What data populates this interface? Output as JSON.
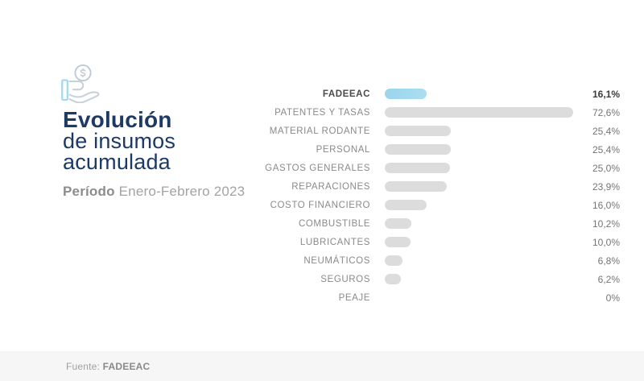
{
  "header": {
    "title_line1": "Evolución",
    "title_line2": "de insumos",
    "title_line3": "acumulada",
    "period_label": "Período",
    "period_value": "Enero-Febrero 2023"
  },
  "icons": {
    "header_icon": "hand-holding-coin-icon"
  },
  "chart_data": {
    "type": "bar",
    "orientation": "horizontal",
    "title": "Evolución de insumos acumulada",
    "period": "Enero-Febrero 2023",
    "categories": [
      "FADEEAC",
      "PATENTES Y TASAS",
      "MATERIAL RODANTE",
      "PERSONAL",
      "GASTOS GENERALES",
      "REPARACIONES",
      "COSTO FINANCIERO",
      "COMBUSTIBLE",
      "LUBRICANTES",
      "NEUMÁTICOS",
      "SEGUROS",
      "PEAJE"
    ],
    "values": [
      16.1,
      72.6,
      25.4,
      25.4,
      25.0,
      23.9,
      16.0,
      10.2,
      10.0,
      6.8,
      6.2,
      0
    ],
    "value_labels": [
      "16,1%",
      "72,6%",
      "25,4%",
      "25,4%",
      "25,0%",
      "23,9%",
      "16,0%",
      "10,2%",
      "10,0%",
      "6,8%",
      "6,2%",
      "0%"
    ],
    "highlight_index": 0,
    "xlim": [
      0,
      72.6
    ],
    "grid": false,
    "legend": "none",
    "colors": {
      "bar": "#dcdcdc",
      "highlight_bar": "#a2d9ef",
      "title_navy": "#1d3a67",
      "label_gray": "#8a8a8a"
    }
  },
  "footer": {
    "source_label": "Fuente:",
    "source_value": "FADEEAC"
  }
}
